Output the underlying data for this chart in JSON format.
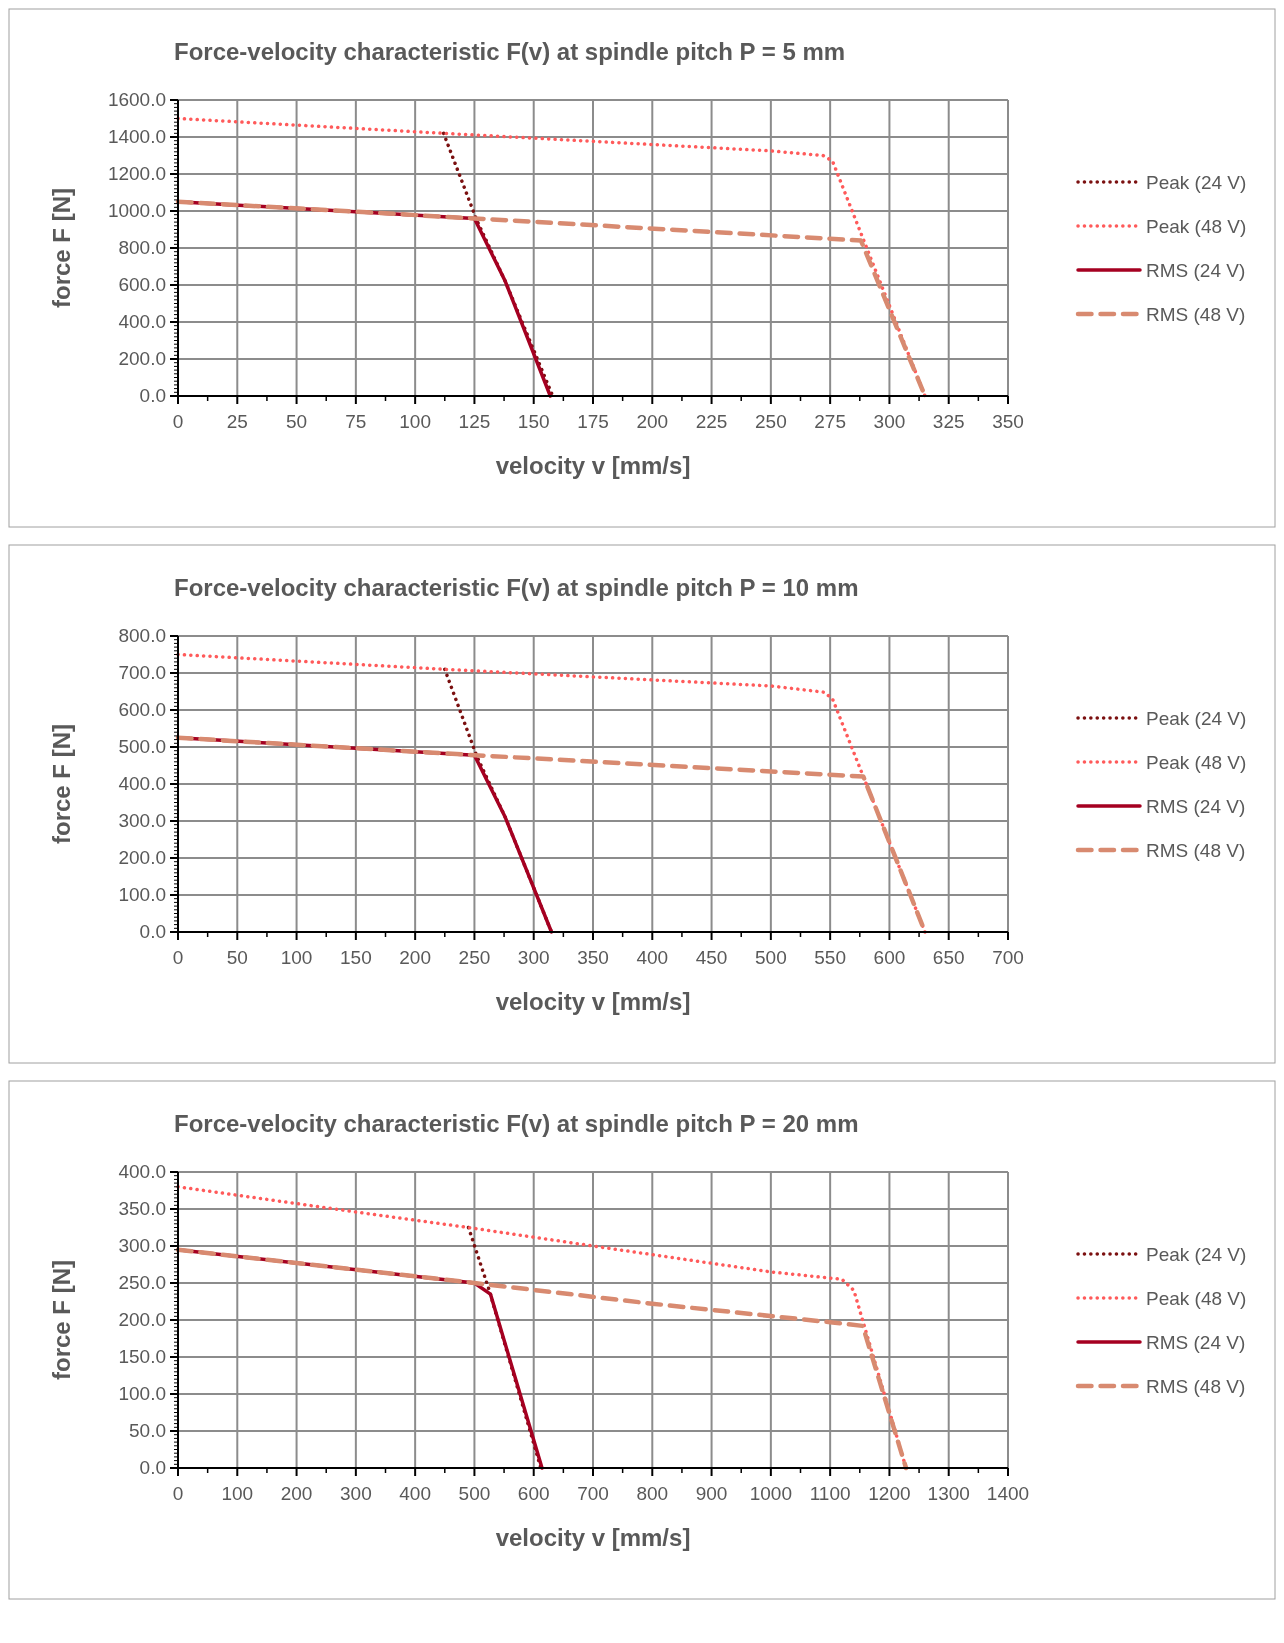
{
  "chart_data": [
    {
      "type": "line",
      "title": "Force-velocity characteristic F(v) at spindle pitch P = 5 mm",
      "xlabel": "velocity v [mm/s]",
      "ylabel": "force F [N]",
      "xlim": [
        0,
        350
      ],
      "xticks": [
        0,
        25,
        50,
        75,
        100,
        125,
        150,
        175,
        200,
        225,
        250,
        275,
        300,
        325,
        350
      ],
      "ylim": [
        0,
        1600
      ],
      "yticks": [
        {
          "value": 0,
          "label": "0.0"
        },
        {
          "value": 200,
          "label": "200.0"
        },
        {
          "value": 400,
          "label": "400.0"
        },
        {
          "value": 600,
          "label": "600.0"
        },
        {
          "value": 800,
          "label": "800.0"
        },
        {
          "value": 1000,
          "label": "1000.0"
        },
        {
          "value": 1200,
          "label": "1200.0"
        },
        {
          "value": 1400,
          "label": "1400.0"
        },
        {
          "value": 1600,
          "label": "1600.0"
        }
      ],
      "grid": true,
      "legend": "right",
      "series": [
        {
          "name": "Peak (24 V)",
          "color": "#7b1010",
          "line_style": "dotted",
          "x": [
            112,
            126,
            138,
            158
          ],
          "values": [
            1420,
            950,
            620,
            0
          ]
        },
        {
          "name": "Peak (48 V)",
          "color": "#ff5a5a",
          "line_style": "dotted",
          "x": [
            0,
            112,
            250,
            272,
            276,
            315
          ],
          "values": [
            1500,
            1420,
            1325,
            1300,
            1270,
            0
          ]
        },
        {
          "name": "RMS (24 V)",
          "color": "#a50021",
          "line_style": "solid",
          "x": [
            0,
            125,
            138,
            157
          ],
          "values": [
            1050,
            960,
            620,
            0
          ]
        },
        {
          "name": "RMS (48 V)",
          "color": "#d88a70",
          "line_style": "dashed",
          "x": [
            0,
            125,
            275,
            288,
            315
          ],
          "values": [
            1050,
            960,
            850,
            840,
            0
          ]
        }
      ]
    },
    {
      "type": "line",
      "title": "Force-velocity characteristic F(v) at spindle pitch P = 10 mm",
      "xlabel": "velocity v [mm/s]",
      "ylabel": "force F [N]",
      "xlim": [
        0,
        700
      ],
      "xticks": [
        0,
        50,
        100,
        150,
        200,
        250,
        300,
        350,
        400,
        450,
        500,
        550,
        600,
        650,
        700
      ],
      "ylim": [
        0,
        800
      ],
      "yticks": [
        {
          "value": 0,
          "label": "0.0"
        },
        {
          "value": 100,
          "label": "100.0"
        },
        {
          "value": 200,
          "label": "200.0"
        },
        {
          "value": 300,
          "label": "300.0"
        },
        {
          "value": 400,
          "label": "400.0"
        },
        {
          "value": 500,
          "label": "500.0"
        },
        {
          "value": 600,
          "label": "600.0"
        },
        {
          "value": 700,
          "label": "700.0"
        },
        {
          "value": 800,
          "label": "800.0"
        }
      ],
      "grid": true,
      "legend": "right",
      "series": [
        {
          "name": "Peak (24 V)",
          "color": "#7b1010",
          "line_style": "dotted",
          "x": [
            225,
            252,
            276,
            315
          ],
          "values": [
            710,
            475,
            310,
            0
          ]
        },
        {
          "name": "Peak (48 V)",
          "color": "#ff5a5a",
          "line_style": "dotted",
          "x": [
            0,
            225,
            500,
            545,
            552,
            630
          ],
          "values": [
            750,
            710,
            665,
            648,
            630,
            0
          ]
        },
        {
          "name": "RMS (24 V)",
          "color": "#a50021",
          "line_style": "solid",
          "x": [
            0,
            250,
            276,
            315
          ],
          "values": [
            525,
            478,
            310,
            0
          ]
        },
        {
          "name": "RMS (48 V)",
          "color": "#d88a70",
          "line_style": "dashed",
          "x": [
            0,
            250,
            550,
            578,
            630
          ],
          "values": [
            525,
            478,
            425,
            420,
            0
          ]
        }
      ]
    },
    {
      "type": "line",
      "title": "Force-velocity characteristic F(v) at spindle pitch P = 20 mm",
      "xlabel": "velocity v [mm/s]",
      "ylabel": "force F [N]",
      "xlim": [
        0,
        1400
      ],
      "xticks": [
        0,
        100,
        200,
        300,
        400,
        500,
        600,
        700,
        800,
        900,
        1000,
        1100,
        1200,
        1300,
        1400
      ],
      "ylim": [
        0,
        400
      ],
      "yticks": [
        {
          "value": 0,
          "label": "0.0"
        },
        {
          "value": 50,
          "label": "50.0"
        },
        {
          "value": 100,
          "label": "100.0"
        },
        {
          "value": 150,
          "label": "150.0"
        },
        {
          "value": 200,
          "label": "200.0"
        },
        {
          "value": 250,
          "label": "250.0"
        },
        {
          "value": 300,
          "label": "300.0"
        },
        {
          "value": 350,
          "label": "350.0"
        },
        {
          "value": 400,
          "label": "400.0"
        }
      ],
      "grid": true,
      "legend": "right",
      "series": [
        {
          "name": "Peak (24 V)",
          "color": "#7b1010",
          "line_style": "dotted",
          "x": [
            490,
            525,
            612
          ],
          "values": [
            325,
            240,
            0
          ]
        },
        {
          "name": "Peak (48 V)",
          "color": "#ff5a5a",
          "line_style": "dotted",
          "x": [
            0,
            300,
            490,
            700,
            1000,
            1120,
            1140,
            1228
          ],
          "values": [
            380,
            346,
            325,
            300,
            265,
            255,
            240,
            0
          ]
        },
        {
          "name": "RMS (24 V)",
          "color": "#a50021",
          "line_style": "solid",
          "x": [
            0,
            500,
            527,
            614
          ],
          "values": [
            295,
            250,
            235,
            0
          ]
        },
        {
          "name": "RMS (48 V)",
          "color": "#d88a70",
          "line_style": "dashed",
          "x": [
            0,
            500,
            800,
            1100,
            1155,
            1228
          ],
          "values": [
            295,
            250,
            222,
            197,
            192,
            0
          ]
        }
      ]
    }
  ]
}
